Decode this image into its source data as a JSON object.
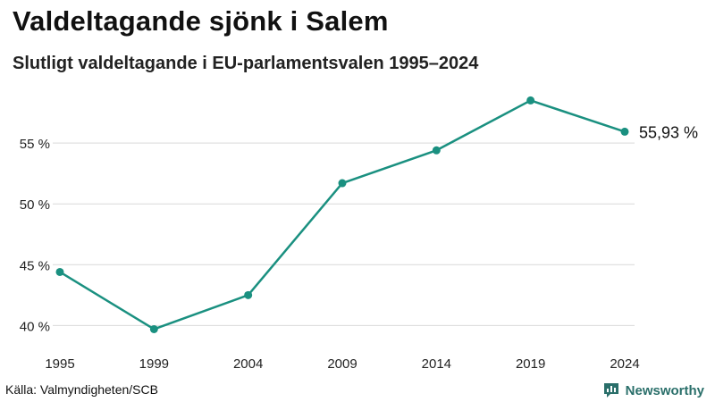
{
  "header": {
    "title": "Valdeltagande sjönk i Salem",
    "subtitle": "Slutligt valdeltagande i EU-parlamentsvalen 1995–2024"
  },
  "footer": {
    "source": "Källa: Valmyndigheten/SCB",
    "brand": "Newsworthy"
  },
  "colors": {
    "line": "#1a9080",
    "grid": "#d9d9d9",
    "brand": "#2a6f6a"
  },
  "chart_data": {
    "type": "line",
    "title": "Valdeltagande sjönk i Salem",
    "subtitle": "Slutligt valdeltagande i EU-parlamentsvalen 1995–2024",
    "xlabel": "",
    "ylabel": "",
    "categories": [
      "1995",
      "1999",
      "2004",
      "2009",
      "2014",
      "2019",
      "2024"
    ],
    "series": [
      {
        "name": "Salem",
        "values": [
          44.4,
          39.7,
          42.5,
          51.7,
          54.4,
          58.5,
          55.93
        ]
      }
    ],
    "y_ticks": [
      40,
      45,
      50,
      55
    ],
    "y_tick_labels": [
      "40 %",
      "45 %",
      "50 %",
      "55 %"
    ],
    "ylim": [
      39,
      60
    ],
    "grid": true,
    "end_label": "55,93 %"
  }
}
